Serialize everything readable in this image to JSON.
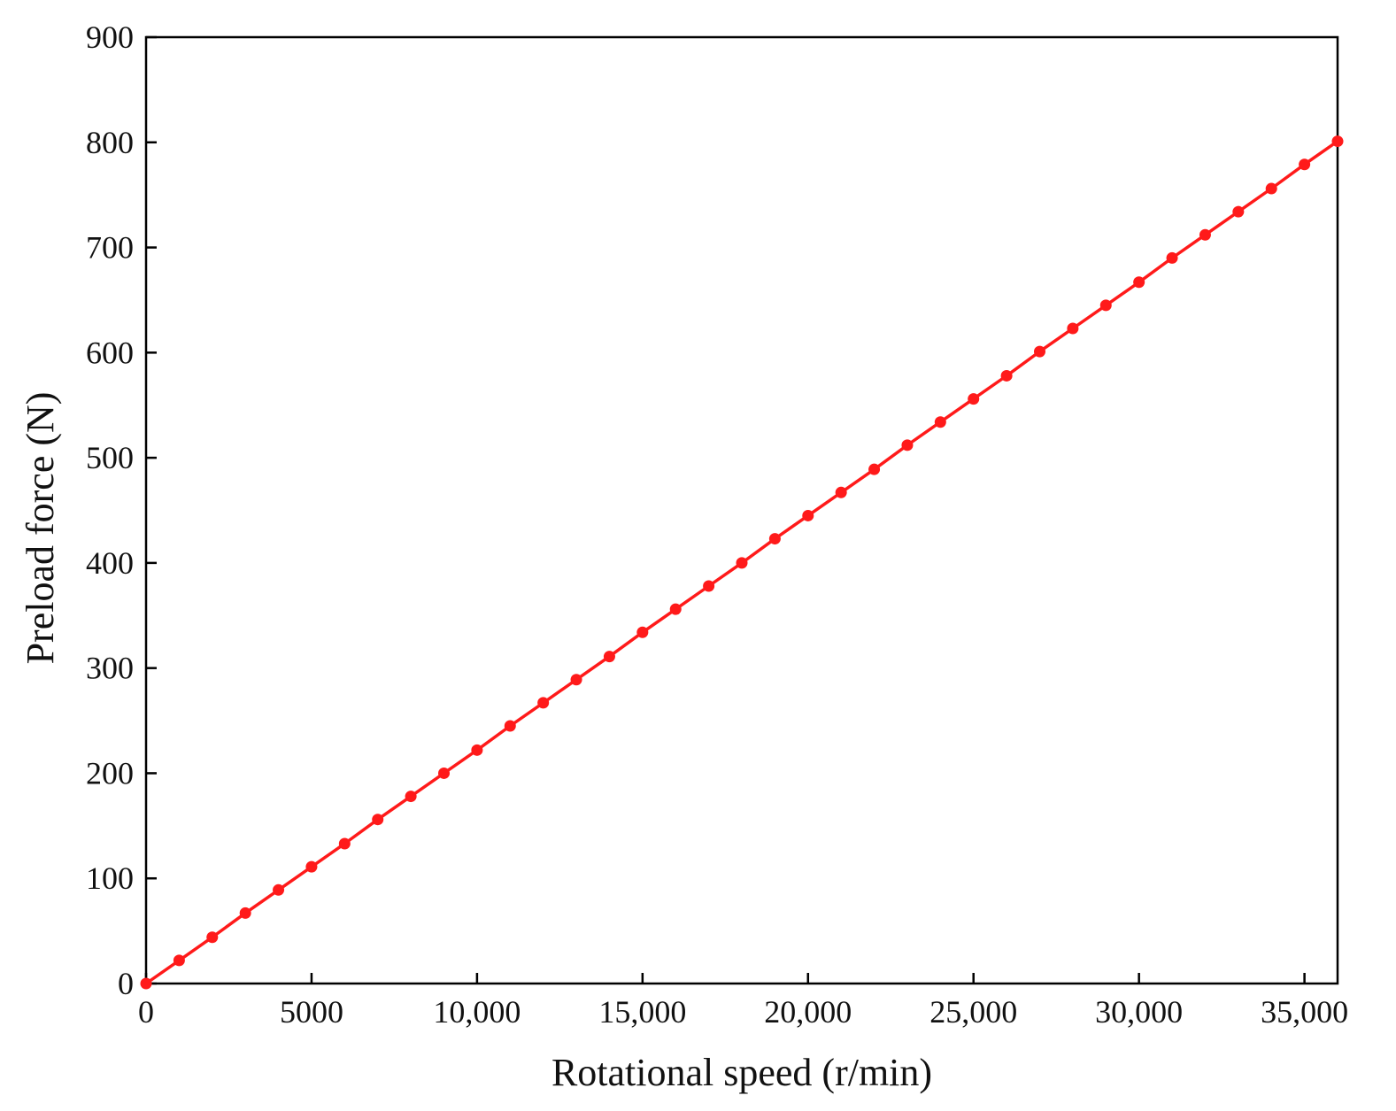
{
  "chart_data": {
    "type": "line",
    "title": "",
    "xlabel": "Rotational speed (r/min)",
    "ylabel": "Preload force (N)",
    "xlim": [
      0,
      36000
    ],
    "ylim": [
      0,
      900
    ],
    "grid": false,
    "x_ticks": [
      0,
      5000,
      10000,
      15000,
      20000,
      25000,
      30000,
      35000
    ],
    "x_tick_labels": [
      "0",
      "5000",
      "10,000",
      "15,000",
      "20,000",
      "25,000",
      "30,000",
      "35,000"
    ],
    "y_ticks": [
      0,
      100,
      200,
      300,
      400,
      500,
      600,
      700,
      800,
      900
    ],
    "y_tick_labels": [
      "0",
      "100",
      "200",
      "300",
      "400",
      "500",
      "600",
      "700",
      "800",
      "900"
    ],
    "series": [
      {
        "color": "#ff1a1a",
        "marker": "circle",
        "x": [
          0,
          1000,
          2000,
          3000,
          4000,
          5000,
          6000,
          7000,
          8000,
          9000,
          10000,
          11000,
          12000,
          13000,
          14000,
          15000,
          16000,
          17000,
          18000,
          19000,
          20000,
          21000,
          22000,
          23000,
          24000,
          25000,
          26000,
          27000,
          28000,
          29000,
          30000,
          31000,
          32000,
          33000,
          34000,
          35000,
          36000
        ],
        "y": [
          0,
          22,
          44,
          67,
          89,
          111,
          133,
          156,
          178,
          200,
          222,
          245,
          267,
          289,
          311,
          334,
          356,
          378,
          400,
          423,
          445,
          467,
          489,
          512,
          534,
          556,
          578,
          601,
          623,
          645,
          667,
          690,
          712,
          734,
          756,
          779,
          801
        ]
      }
    ]
  }
}
